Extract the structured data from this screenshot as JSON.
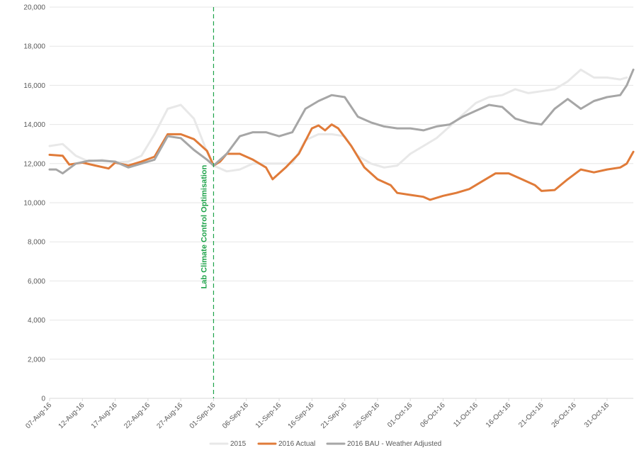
{
  "chart_data": {
    "type": "line",
    "title": "",
    "xlabel": "",
    "ylabel": "",
    "ylim": [
      0,
      20000
    ],
    "y_ticks": [
      0,
      2000,
      4000,
      6000,
      8000,
      10000,
      12000,
      14000,
      16000,
      18000,
      20000
    ],
    "y_tick_labels": [
      "0",
      "2,000",
      "4,000",
      "6,000",
      "8,000",
      "10,000",
      "12,000",
      "14,000",
      "16,000",
      "18,000",
      "20,000"
    ],
    "x_range": [
      "2016-08-07",
      "2016-11-04"
    ],
    "x_ticks": [
      {
        "date": "2016-08-07",
        "label": "07-Aug-16"
      },
      {
        "date": "2016-08-12",
        "label": "12-Aug-16"
      },
      {
        "date": "2016-08-17",
        "label": "17-Aug-16"
      },
      {
        "date": "2016-08-22",
        "label": "22-Aug-16"
      },
      {
        "date": "2016-08-27",
        "label": "27-Aug-16"
      },
      {
        "date": "2016-09-01",
        "label": "01-Sep-16"
      },
      {
        "date": "2016-09-06",
        "label": "06-Sep-16"
      },
      {
        "date": "2016-09-11",
        "label": "11-Sep-16"
      },
      {
        "date": "2016-09-16",
        "label": "16-Sep-16"
      },
      {
        "date": "2016-09-21",
        "label": "21-Sep-16"
      },
      {
        "date": "2016-09-26",
        "label": "26-Sep-16"
      },
      {
        "date": "2016-10-01",
        "label": "01-Oct-16"
      },
      {
        "date": "2016-10-06",
        "label": "06-Oct-16"
      },
      {
        "date": "2016-10-11",
        "label": "11-Oct-16"
      },
      {
        "date": "2016-10-16",
        "label": "16-Oct-16"
      },
      {
        "date": "2016-10-21",
        "label": "21-Oct-16"
      },
      {
        "date": "2016-10-26",
        "label": "26-Oct-16"
      },
      {
        "date": "2016-10-31",
        "label": "31-Oct-16"
      }
    ],
    "grid": "horizontal",
    "legend_position": "bottom",
    "annotation": {
      "date": "2016-09-01",
      "label": "Lab Climate Control Optimisation",
      "color": "#1fa34a"
    },
    "series": [
      {
        "name": "2015",
        "color": "#e8e8e8",
        "points": [
          [
            "2016-08-07",
            12900
          ],
          [
            "2016-08-09",
            13000
          ],
          [
            "2016-08-11",
            12400
          ],
          [
            "2016-08-13",
            12100
          ],
          [
            "2016-08-15",
            12200
          ],
          [
            "2016-08-17",
            12050
          ],
          [
            "2016-08-19",
            12100
          ],
          [
            "2016-08-21",
            12400
          ],
          [
            "2016-08-23",
            13500
          ],
          [
            "2016-08-25",
            14800
          ],
          [
            "2016-08-27",
            15000
          ],
          [
            "2016-08-29",
            14300
          ],
          [
            "2016-08-31",
            12600
          ],
          [
            "2016-09-01",
            11900
          ],
          [
            "2016-09-03",
            11600
          ],
          [
            "2016-09-05",
            11700
          ],
          [
            "2016-09-07",
            12000
          ],
          [
            "2016-09-09",
            12000
          ],
          [
            "2016-09-11",
            12000
          ],
          [
            "2016-09-13",
            12000
          ],
          [
            "2016-09-15",
            13200
          ],
          [
            "2016-09-17",
            13500
          ],
          [
            "2016-09-19",
            13500
          ],
          [
            "2016-09-21",
            13400
          ],
          [
            "2016-09-23",
            12400
          ],
          [
            "2016-09-25",
            12000
          ],
          [
            "2016-09-27",
            11800
          ],
          [
            "2016-09-29",
            11900
          ],
          [
            "2016-10-01",
            12500
          ],
          [
            "2016-10-03",
            12900
          ],
          [
            "2016-10-05",
            13300
          ],
          [
            "2016-10-07",
            13900
          ],
          [
            "2016-10-09",
            14500
          ],
          [
            "2016-10-11",
            15100
          ],
          [
            "2016-10-13",
            15400
          ],
          [
            "2016-10-15",
            15500
          ],
          [
            "2016-10-17",
            15800
          ],
          [
            "2016-10-19",
            15600
          ],
          [
            "2016-10-21",
            15700
          ],
          [
            "2016-10-23",
            15800
          ],
          [
            "2016-10-25",
            16200
          ],
          [
            "2016-10-27",
            16800
          ],
          [
            "2016-10-29",
            16400
          ],
          [
            "2016-10-31",
            16400
          ],
          [
            "2016-11-02",
            16300
          ],
          [
            "2016-11-03",
            16400
          ]
        ]
      },
      {
        "name": "2016 Actual",
        "color": "#e07b39",
        "points": [
          [
            "2016-08-07",
            12450
          ],
          [
            "2016-08-09",
            12400
          ],
          [
            "2016-08-10",
            11950
          ],
          [
            "2016-08-12",
            12050
          ],
          [
            "2016-08-14",
            11900
          ],
          [
            "2016-08-16",
            11750
          ],
          [
            "2016-08-17",
            12050
          ],
          [
            "2016-08-19",
            11900
          ],
          [
            "2016-08-21",
            12100
          ],
          [
            "2016-08-23",
            12350
          ],
          [
            "2016-08-25",
            13500
          ],
          [
            "2016-08-27",
            13500
          ],
          [
            "2016-08-29",
            13250
          ],
          [
            "2016-08-31",
            12650
          ],
          [
            "2016-09-01",
            11900
          ],
          [
            "2016-09-02",
            12100
          ],
          [
            "2016-09-03",
            12500
          ],
          [
            "2016-09-05",
            12500
          ],
          [
            "2016-09-07",
            12200
          ],
          [
            "2016-09-09",
            11800
          ],
          [
            "2016-09-10",
            11200
          ],
          [
            "2016-09-12",
            11800
          ],
          [
            "2016-09-14",
            12500
          ],
          [
            "2016-09-16",
            13800
          ],
          [
            "2016-09-17",
            13950
          ],
          [
            "2016-09-18",
            13700
          ],
          [
            "2016-09-19",
            14000
          ],
          [
            "2016-09-20",
            13800
          ],
          [
            "2016-09-22",
            12900
          ],
          [
            "2016-09-24",
            11800
          ],
          [
            "2016-09-26",
            11200
          ],
          [
            "2016-09-28",
            10900
          ],
          [
            "2016-09-29",
            10500
          ],
          [
            "2016-10-01",
            10400
          ],
          [
            "2016-10-03",
            10300
          ],
          [
            "2016-10-04",
            10150
          ],
          [
            "2016-10-06",
            10350
          ],
          [
            "2016-10-08",
            10500
          ],
          [
            "2016-10-10",
            10700
          ],
          [
            "2016-10-12",
            11100
          ],
          [
            "2016-10-14",
            11500
          ],
          [
            "2016-10-16",
            11500
          ],
          [
            "2016-10-18",
            11200
          ],
          [
            "2016-10-20",
            10900
          ],
          [
            "2016-10-21",
            10600
          ],
          [
            "2016-10-23",
            10650
          ],
          [
            "2016-10-25",
            11200
          ],
          [
            "2016-10-27",
            11700
          ],
          [
            "2016-10-29",
            11550
          ],
          [
            "2016-10-31",
            11700
          ],
          [
            "2016-11-02",
            11800
          ],
          [
            "2016-11-03",
            12000
          ],
          [
            "2016-11-04",
            12600
          ]
        ]
      },
      {
        "name": "2016 BAU - Weather Adjusted",
        "color": "#a6a6a6",
        "points": [
          [
            "2016-08-07",
            11700
          ],
          [
            "2016-08-08",
            11700
          ],
          [
            "2016-08-09",
            11500
          ],
          [
            "2016-08-11",
            12000
          ],
          [
            "2016-08-13",
            12150
          ],
          [
            "2016-08-15",
            12150
          ],
          [
            "2016-08-17",
            12100
          ],
          [
            "2016-08-19",
            11800
          ],
          [
            "2016-08-21",
            12000
          ],
          [
            "2016-08-23",
            12200
          ],
          [
            "2016-08-25",
            13400
          ],
          [
            "2016-08-27",
            13300
          ],
          [
            "2016-08-29",
            12700
          ],
          [
            "2016-08-31",
            12200
          ],
          [
            "2016-09-01",
            11900
          ],
          [
            "2016-09-03",
            12500
          ],
          [
            "2016-09-05",
            13400
          ],
          [
            "2016-09-07",
            13600
          ],
          [
            "2016-09-09",
            13600
          ],
          [
            "2016-09-11",
            13400
          ],
          [
            "2016-09-13",
            13600
          ],
          [
            "2016-09-15",
            14800
          ],
          [
            "2016-09-17",
            15200
          ],
          [
            "2016-09-19",
            15500
          ],
          [
            "2016-09-21",
            15400
          ],
          [
            "2016-09-23",
            14400
          ],
          [
            "2016-09-25",
            14100
          ],
          [
            "2016-09-27",
            13900
          ],
          [
            "2016-09-29",
            13800
          ],
          [
            "2016-10-01",
            13800
          ],
          [
            "2016-10-03",
            13700
          ],
          [
            "2016-10-05",
            13900
          ],
          [
            "2016-10-07",
            14000
          ],
          [
            "2016-10-09",
            14400
          ],
          [
            "2016-10-11",
            14700
          ],
          [
            "2016-10-13",
            15000
          ],
          [
            "2016-10-15",
            14900
          ],
          [
            "2016-10-17",
            14300
          ],
          [
            "2016-10-19",
            14100
          ],
          [
            "2016-10-21",
            14000
          ],
          [
            "2016-10-23",
            14800
          ],
          [
            "2016-10-25",
            15300
          ],
          [
            "2016-10-27",
            14800
          ],
          [
            "2016-10-29",
            15200
          ],
          [
            "2016-10-31",
            15400
          ],
          [
            "2016-11-02",
            15500
          ],
          [
            "2016-11-03",
            16000
          ],
          [
            "2016-11-04",
            16800
          ]
        ]
      }
    ]
  }
}
